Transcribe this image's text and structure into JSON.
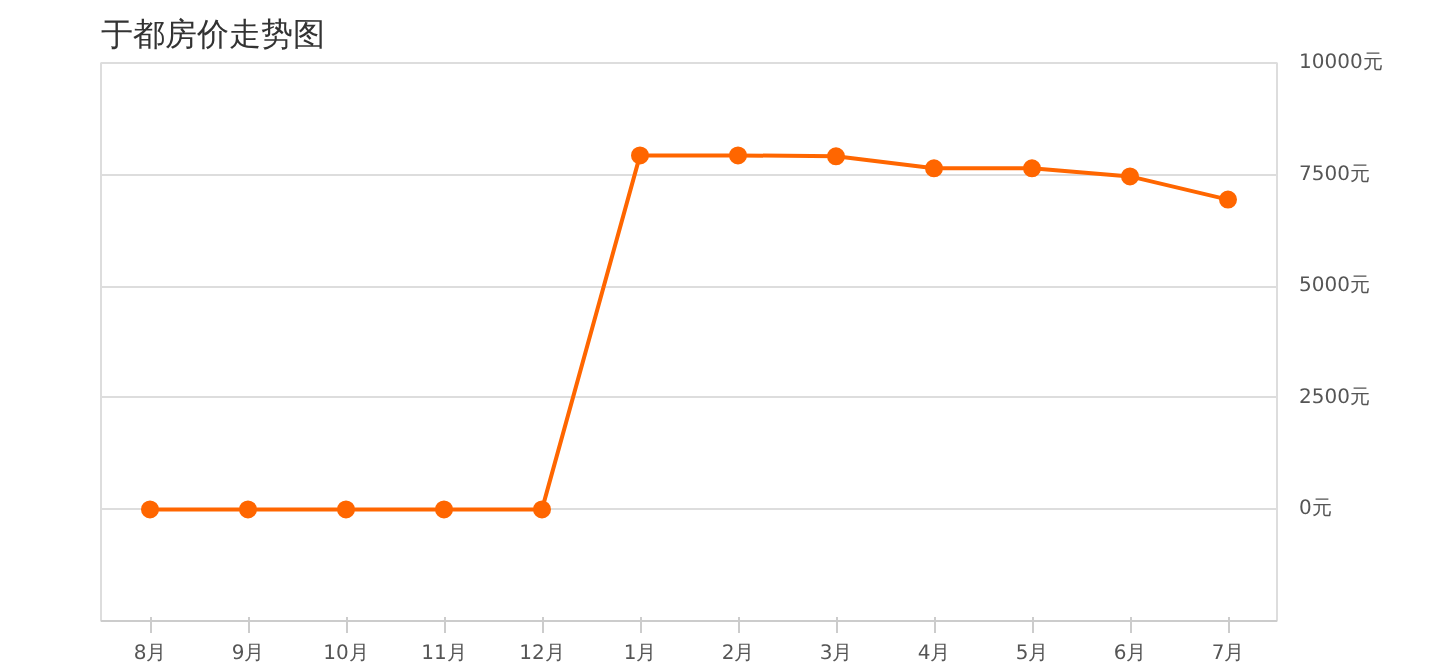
{
  "chart_data": {
    "type": "line",
    "title": "于都房价走势图",
    "categories": [
      "8月",
      "9月",
      "10月",
      "11月",
      "12月",
      "1月",
      "2月",
      "3月",
      "4月",
      "5月",
      "6月",
      "7月"
    ],
    "series": [
      {
        "color": "#ff6600",
        "values": [
          0,
          0,
          0,
          0,
          0,
          7930,
          7930,
          7910,
          7640,
          7640,
          7460,
          6940
        ]
      }
    ],
    "ylim": [
      -2500,
      10000
    ],
    "yticks": [
      {
        "value": 0,
        "label": "0元"
      },
      {
        "value": 2500,
        "label": "2500元"
      },
      {
        "value": 5000,
        "label": "5000元"
      },
      {
        "value": 7500,
        "label": "7500元"
      },
      {
        "value": 10000,
        "label": "10000元"
      }
    ],
    "grid": "y",
    "marker": "circle",
    "line_style": "solid"
  }
}
